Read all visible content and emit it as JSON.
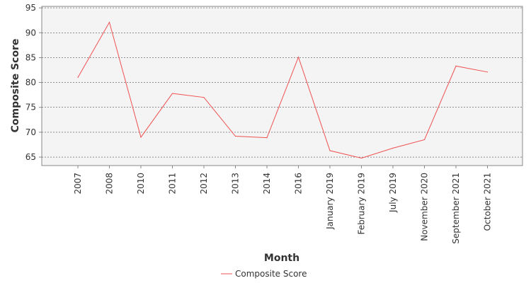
{
  "chart_data": {
    "type": "line",
    "title": "",
    "xlabel": "Month",
    "ylabel": "Composite Score",
    "categories": [
      "2007",
      "2008",
      "2010",
      "2011",
      "2012",
      "2013",
      "2014",
      "2016",
      "January 2019",
      "February 2019",
      "July 2019",
      "November 2020",
      "September 2021",
      "October 2021"
    ],
    "series": [
      {
        "name": "Composite Score",
        "values": [
          81.0,
          92.1,
          69.0,
          77.8,
          77.0,
          69.2,
          68.9,
          85.1,
          66.3,
          64.8,
          66.8,
          68.5,
          83.3,
          82.1
        ]
      }
    ],
    "ylim": [
      63.3,
      95.3
    ],
    "yticks": [
      65,
      70,
      75,
      80,
      85,
      90,
      95
    ],
    "grid": true,
    "legend_position": "bottom",
    "colors": {
      "line": "#f05050",
      "plot_bg": "#f4f4f4",
      "grid": "#555555",
      "axis": "#888888"
    }
  }
}
